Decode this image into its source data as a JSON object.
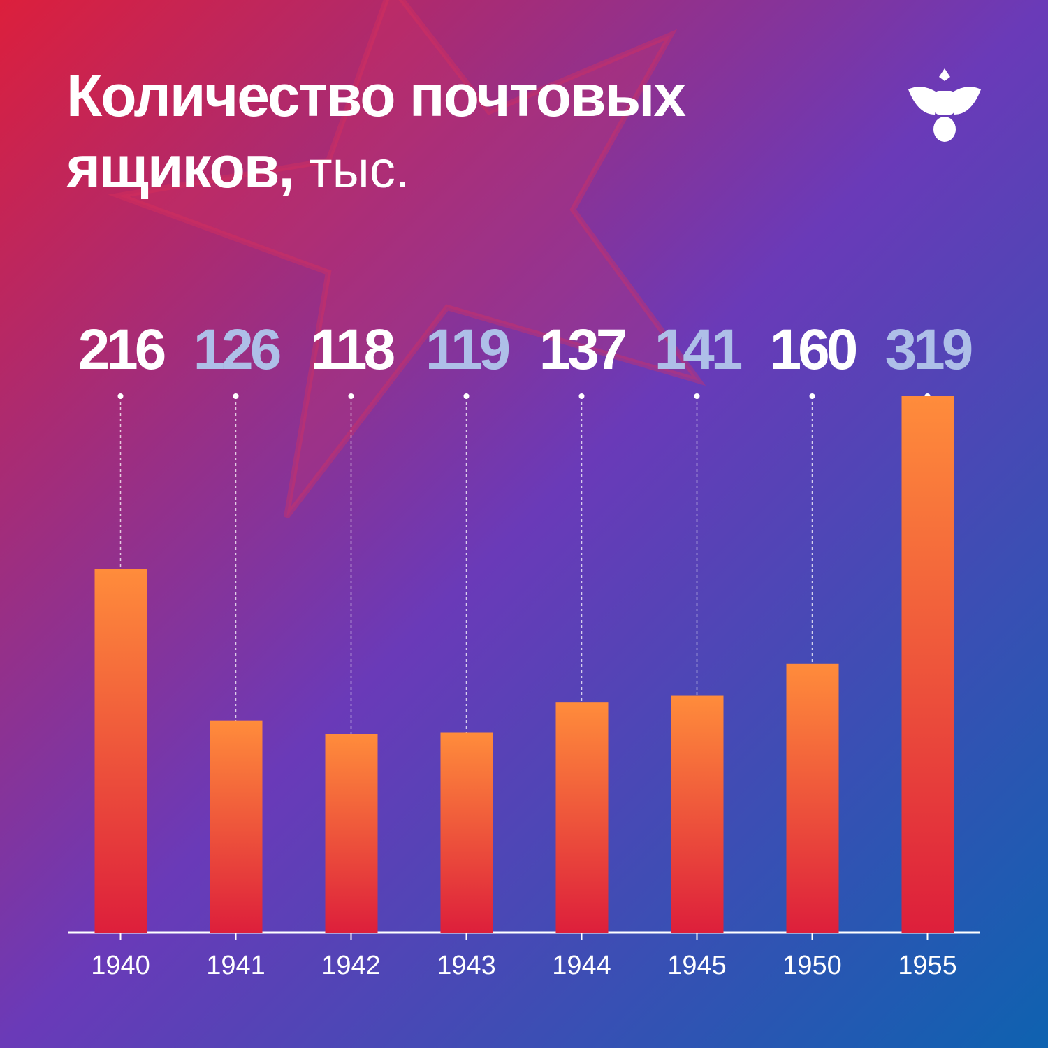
{
  "chart_data": {
    "type": "bar",
    "title": "Количество почтовых ящиков,",
    "unit": "тыс.",
    "categories": [
      "1940",
      "1941",
      "1942",
      "1943",
      "1944",
      "1945",
      "1950",
      "1955"
    ],
    "values": [
      216,
      126,
      118,
      119,
      137,
      141,
      160,
      319
    ],
    "color": [
      "#ff8c3b",
      "#dd1f3b"
    ],
    "value_label_colors": [
      "#ffffff",
      "#aebfe8"
    ]
  }
}
